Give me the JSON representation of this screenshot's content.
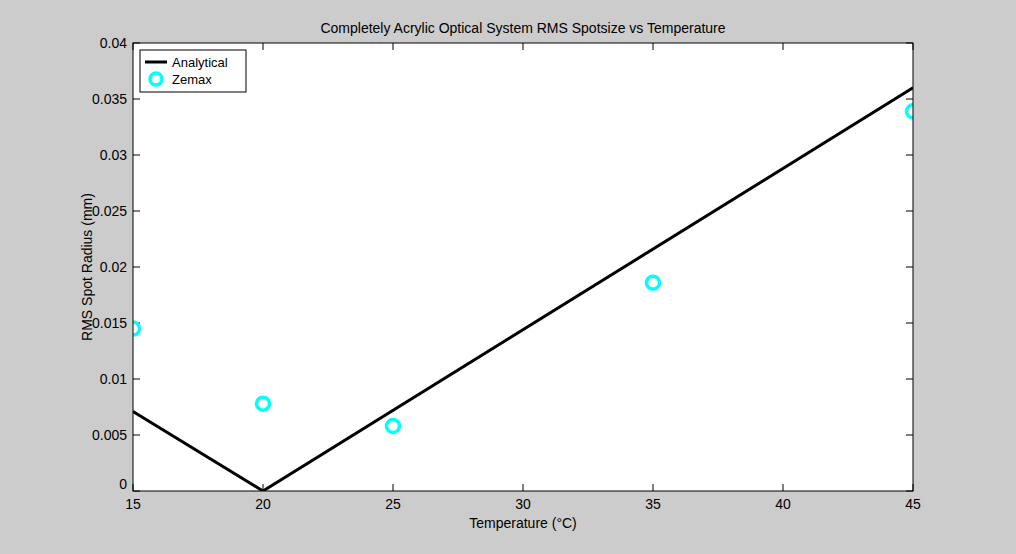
{
  "chart_data": {
    "type": "line",
    "title": "Completely Acrylic Optical System RMS Spotsize vs Temperature",
    "x_label": "Temperature (°C)",
    "y_label": "RMS Spot Radius (mm)",
    "xlim": [
      15,
      45
    ],
    "xticks": [
      15,
      20,
      25,
      30,
      35,
      40,
      45
    ],
    "ylim": [
      0,
      0.04
    ],
    "yticks": [
      0,
      0.005,
      0.01,
      0.015,
      0.02,
      0.025,
      0.03,
      0.035,
      0.04
    ],
    "grid": false,
    "legend": "northwest",
    "series": [
      {
        "name": "Analytical",
        "type": "line",
        "color": "#000000",
        "line_style": "solid",
        "x": [
          15,
          20,
          45
        ],
        "values": [
          0.0071,
          0,
          0.036
        ]
      },
      {
        "name": "Zemax",
        "type": "scatter",
        "color": "#00ffff",
        "marker": "circle",
        "x": [
          15,
          20,
          25,
          35,
          45
        ],
        "values": [
          0.0145,
          0.0078,
          0.0058,
          0.0186,
          0.0339
        ]
      }
    ]
  }
}
